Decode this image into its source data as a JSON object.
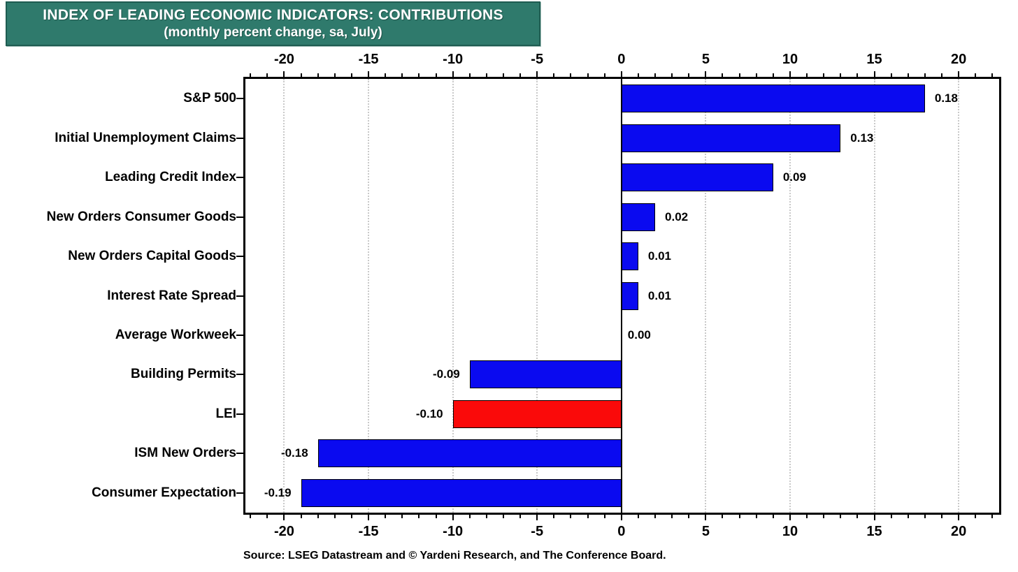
{
  "header": {
    "title": "INDEX OF LEADING ECONOMIC INDICATORS: CONTRIBUTIONS",
    "subtitle": "(monthly percent change, sa, July)",
    "bg_color": "#2F7A6C",
    "text_color": "#FFFFFF"
  },
  "chart_data": {
    "type": "bar",
    "orientation": "horizontal",
    "title": "INDEX OF LEADING ECONOMIC INDICATORS: CONTRIBUTIONS (monthly percent change, sa, July)",
    "categories": [
      "S&P 500",
      "Initial Unemployment Claims",
      "Leading Credit Index",
      "New Orders Consumer Goods",
      "New Orders Capital Goods",
      "Interest Rate Spread",
      "Average Workweek",
      "Building Permits",
      "LEI",
      "ISM New Orders",
      "Consumer Expectation"
    ],
    "values": [
      0.18,
      0.13,
      0.09,
      0.02,
      0.01,
      0.01,
      0.0,
      -0.09,
      -0.1,
      -0.18,
      -0.19
    ],
    "value_labels": [
      "0.18",
      "0.13",
      "0.09",
      "0.02",
      "0.01",
      "0.01",
      "0.00",
      "-0.09",
      "-0.10",
      "-0.18",
      "-0.19"
    ],
    "bar_colors": [
      "#0A0AF0",
      "#0A0AF0",
      "#0A0AF0",
      "#0A0AF0",
      "#0A0AF0",
      "#0A0AF0",
      "#0A0AF0",
      "#0A0AF0",
      "#FA0A0A",
      "#0A0AF0",
      "#0A0AF0"
    ],
    "highlight_category": "LEI",
    "colors": {
      "default_bar": "#0A0AF0",
      "highlight_bar": "#FA0A0A",
      "gridline": "#C9C9C9"
    },
    "axis": {
      "min": -22.3,
      "max": 22.4,
      "value_scale": 100,
      "major_ticks": [
        -20,
        -15,
        -10,
        -5,
        0,
        5,
        10,
        15,
        20
      ],
      "major_tick_labels": [
        "-20",
        "-15",
        "-10",
        "-5",
        "0",
        "5",
        "10",
        "15",
        "20"
      ],
      "minor_tick_step": 1,
      "tick_label_positions": "top and bottom"
    },
    "grid": "dotted vertical gridlines at major ticks, solid zero line",
    "legend": "none"
  },
  "source": {
    "text": "Source: LSEG Datastream and © Yardeni Research, and The Conference Board."
  }
}
